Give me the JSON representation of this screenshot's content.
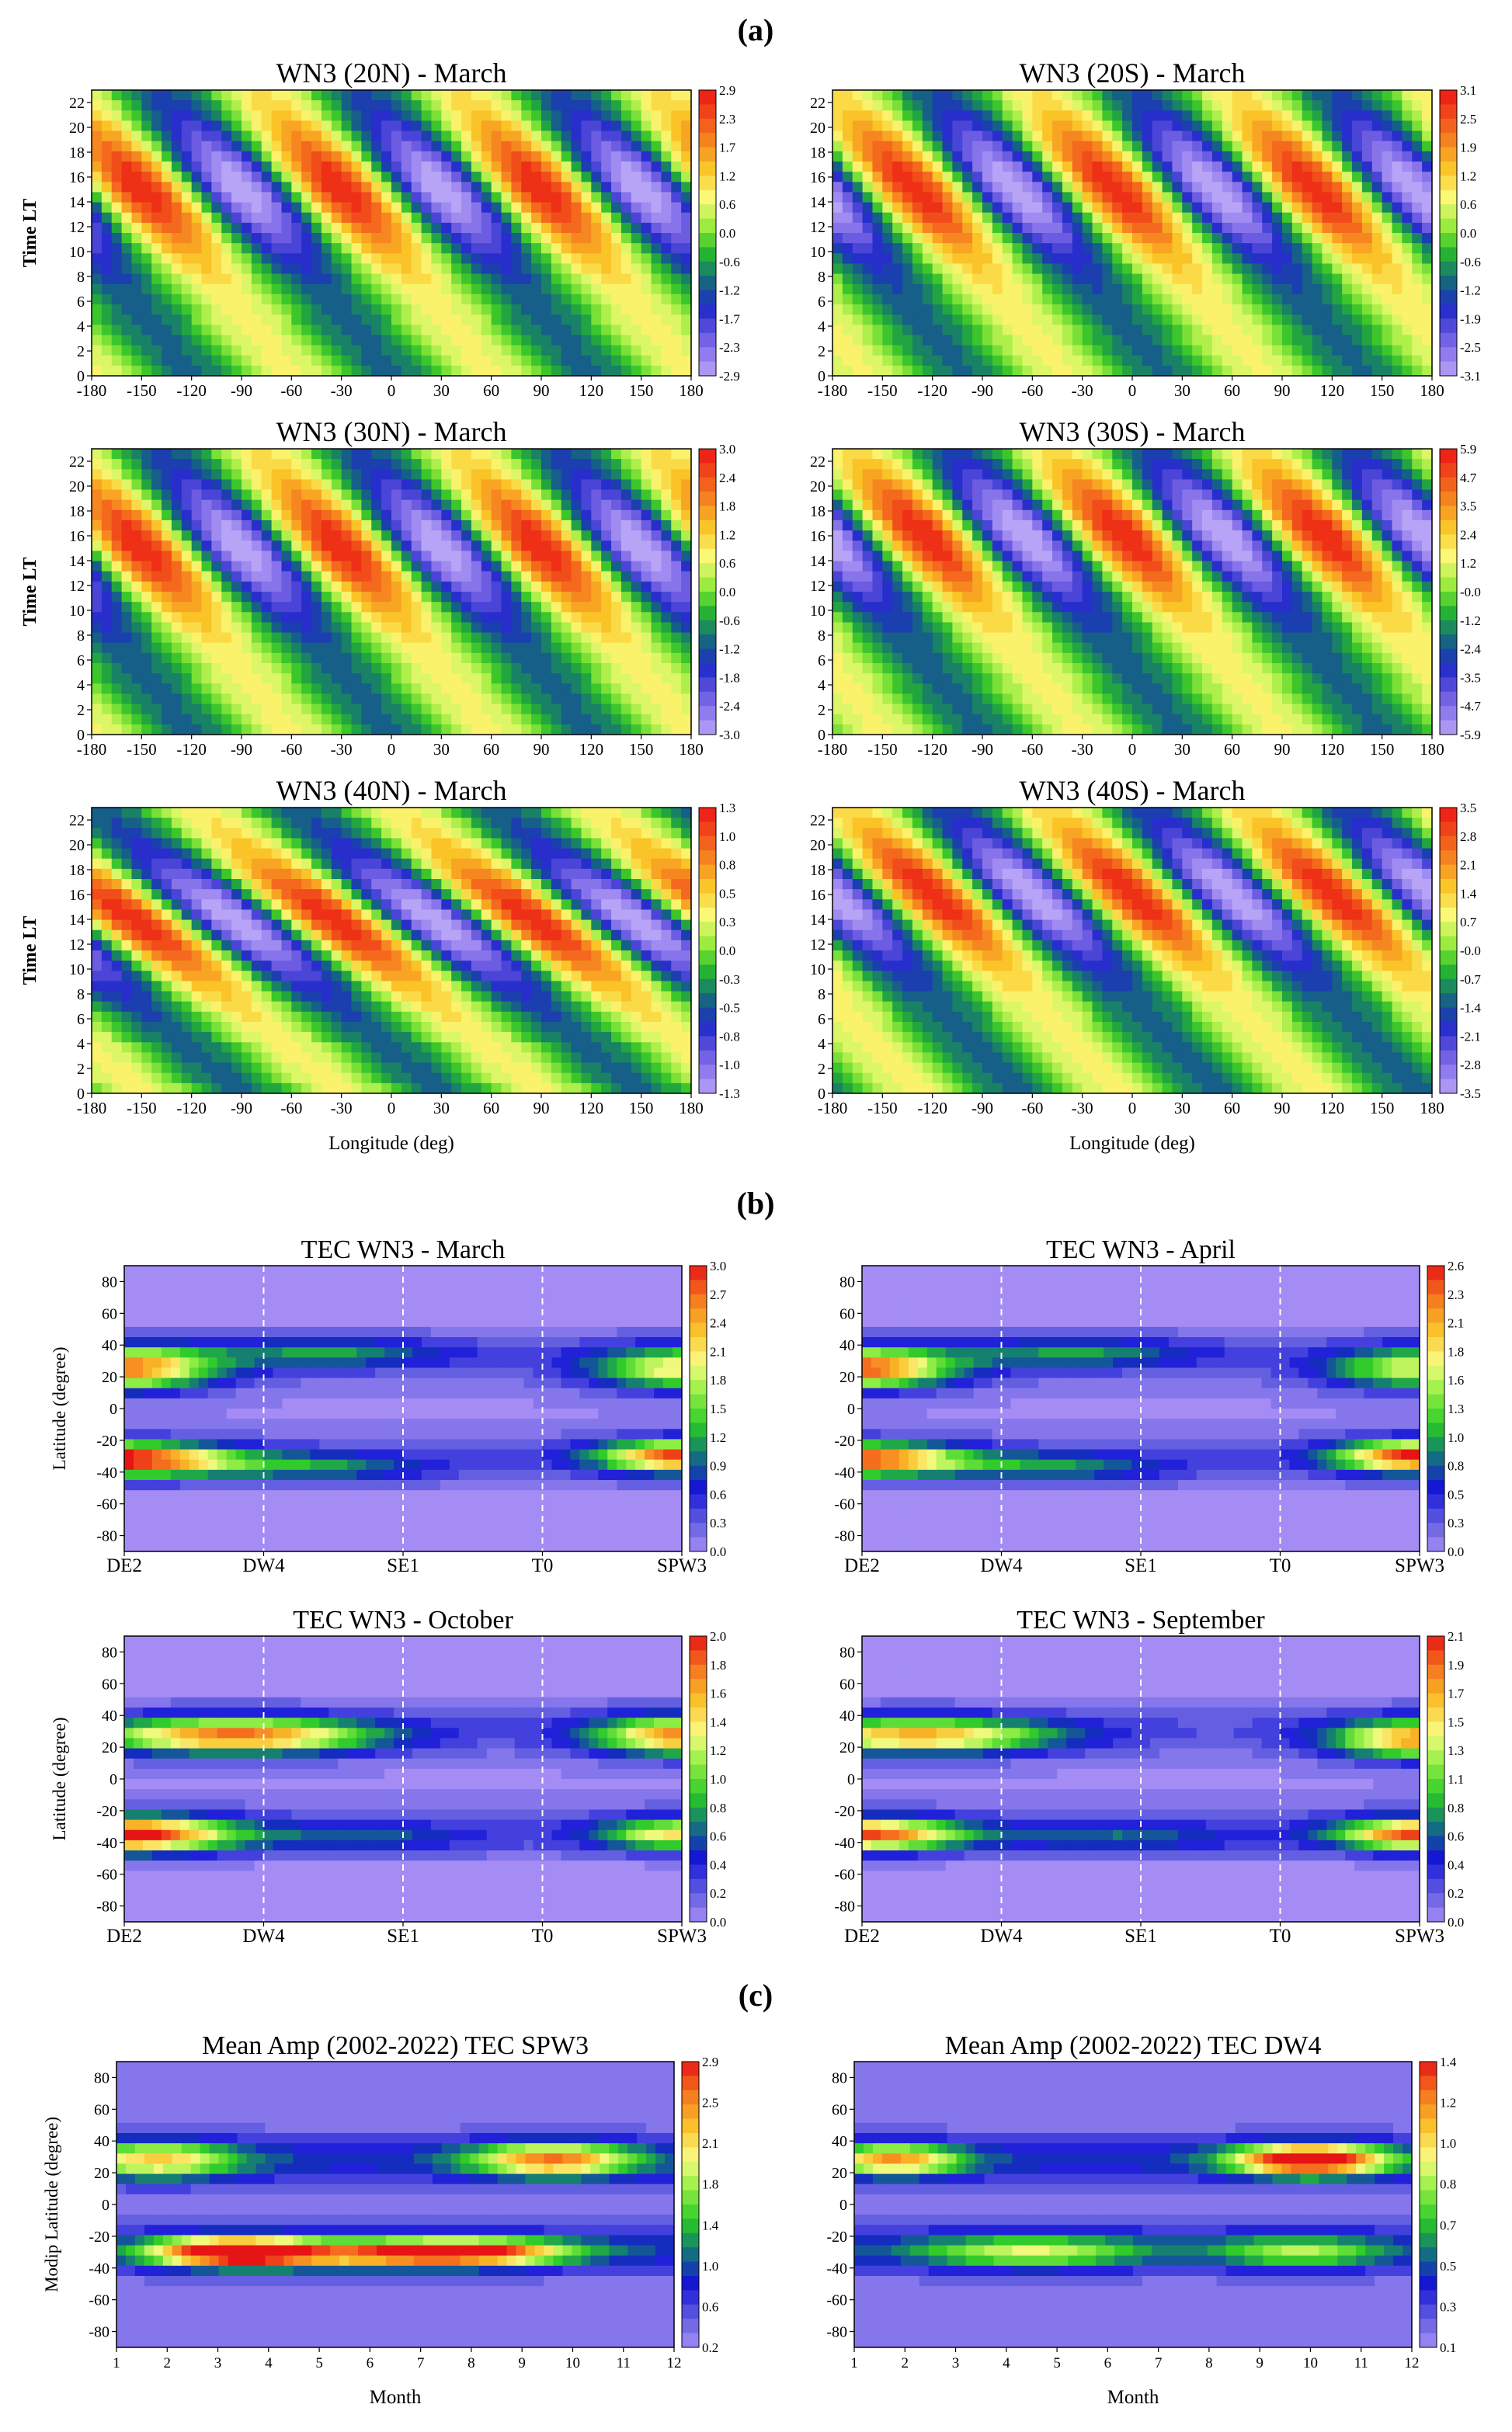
{
  "figure": {
    "section_labels": [
      "(a)",
      "(b)",
      "(c)"
    ]
  },
  "chart_data": [
    {
      "id": "a1",
      "type": "heatmap",
      "group": "a",
      "title": "WN3 (20N) - March",
      "ylabel": "Time LT",
      "xlabel": "",
      "x_ticks": [
        "-180",
        "-150",
        "-120",
        "-90",
        "-60",
        "-30",
        "0",
        "30",
        "60",
        "90",
        "120",
        "150",
        "180"
      ],
      "y_ticks": [
        "0",
        "2",
        "4",
        "6",
        "8",
        "10",
        "12",
        "14",
        "16",
        "18",
        "20",
        "22"
      ],
      "xlim": [
        -180,
        180
      ],
      "ylim": [
        0,
        23
      ],
      "colorbar": [
        "2.9",
        "2.3",
        "1.7",
        "1.2",
        "0.6",
        "0.0",
        "-0.6",
        "-1.2",
        "-1.7",
        "-2.3",
        "-2.9"
      ],
      "field": {
        "kind": "wave",
        "wavenumber": 3,
        "phase_deg": -150,
        "peak_lt": 15,
        "tilt_deg_per_hr": -6,
        "amplitude": 2.9
      }
    },
    {
      "id": "a2",
      "type": "heatmap",
      "group": "a",
      "title": "WN3 (20S) - March",
      "ylabel": "",
      "xlabel": "",
      "x_ticks": [
        "-180",
        "-150",
        "-120",
        "-90",
        "-60",
        "-30",
        "0",
        "30",
        "60",
        "90",
        "120",
        "150",
        "180"
      ],
      "y_ticks": [
        "0",
        "2",
        "4",
        "6",
        "8",
        "10",
        "12",
        "14",
        "16",
        "18",
        "20",
        "22"
      ],
      "xlim": [
        -180,
        180
      ],
      "ylim": [
        0,
        23
      ],
      "colorbar": [
        "3.1",
        "2.5",
        "1.9",
        "1.2",
        "0.6",
        "0.0",
        "-0.6",
        "-1.2",
        "-1.9",
        "-2.5",
        "-3.1"
      ],
      "field": {
        "kind": "wave",
        "wavenumber": 3,
        "phase_deg": -130,
        "peak_lt": 15,
        "tilt_deg_per_hr": -6,
        "amplitude": 3.1
      }
    },
    {
      "id": "a3",
      "type": "heatmap",
      "group": "a",
      "title": "WN3 (30N) - March",
      "ylabel": "Time LT",
      "xlabel": "",
      "x_ticks": [
        "-180",
        "-150",
        "-120",
        "-90",
        "-60",
        "-30",
        "0",
        "30",
        "60",
        "90",
        "120",
        "150",
        "180"
      ],
      "y_ticks": [
        "0",
        "2",
        "4",
        "6",
        "8",
        "10",
        "12",
        "14",
        "16",
        "18",
        "20",
        "22"
      ],
      "xlim": [
        -180,
        180
      ],
      "ylim": [
        0,
        23
      ],
      "colorbar": [
        "3.0",
        "2.4",
        "1.8",
        "1.2",
        "0.6",
        "0.0",
        "-0.6",
        "-1.2",
        "-1.8",
        "-2.4",
        "-3.0"
      ],
      "field": {
        "kind": "wave",
        "wavenumber": 3,
        "phase_deg": -150,
        "peak_lt": 15,
        "tilt_deg_per_hr": -6,
        "amplitude": 3.0
      }
    },
    {
      "id": "a4",
      "type": "heatmap",
      "group": "a",
      "title": "WN3 (30S) - March",
      "ylabel": "",
      "xlabel": "",
      "x_ticks": [
        "-180",
        "-150",
        "-120",
        "-90",
        "-60",
        "-30",
        "0",
        "30",
        "60",
        "90",
        "120",
        "150",
        "180"
      ],
      "y_ticks": [
        "0",
        "2",
        "4",
        "6",
        "8",
        "10",
        "12",
        "14",
        "16",
        "18",
        "20",
        "22"
      ],
      "xlim": [
        -180,
        180
      ],
      "ylim": [
        0,
        23
      ],
      "colorbar": [
        "5.9",
        "4.7",
        "3.5",
        "2.4",
        "1.2",
        "-0.0",
        "-1.2",
        "-2.4",
        "-3.5",
        "-4.7",
        "-5.9"
      ],
      "field": {
        "kind": "wave",
        "wavenumber": 3,
        "phase_deg": -125,
        "peak_lt": 16,
        "tilt_deg_per_hr": -6,
        "amplitude": 5.9
      }
    },
    {
      "id": "a5",
      "type": "heatmap",
      "group": "a",
      "title": "WN3 (40N) - March",
      "ylabel": "Time LT",
      "xlabel": "Longitude (deg)",
      "x_ticks": [
        "-180",
        "-150",
        "-120",
        "-90",
        "-60",
        "-30",
        "0",
        "30",
        "60",
        "90",
        "120",
        "150",
        "180"
      ],
      "y_ticks": [
        "0",
        "2",
        "4",
        "6",
        "8",
        "10",
        "12",
        "14",
        "16",
        "18",
        "20",
        "22"
      ],
      "xlim": [
        -180,
        180
      ],
      "ylim": [
        0,
        23
      ],
      "colorbar": [
        "1.3",
        "1.0",
        "0.8",
        "0.5",
        "0.3",
        "0.0",
        "-0.3",
        "-0.5",
        "-0.8",
        "-1.0",
        "-1.3"
      ],
      "field": {
        "kind": "wave",
        "wavenumber": 3,
        "phase_deg": -155,
        "peak_lt": 14,
        "tilt_deg_per_hr": -9,
        "amplitude": 1.3
      }
    },
    {
      "id": "a6",
      "type": "heatmap",
      "group": "a",
      "title": "WN3 (40S) - March",
      "ylabel": "",
      "xlabel": "Longitude (deg)",
      "x_ticks": [
        "-180",
        "-150",
        "-120",
        "-90",
        "-60",
        "-30",
        "0",
        "30",
        "60",
        "90",
        "120",
        "150",
        "180"
      ],
      "y_ticks": [
        "0",
        "2",
        "4",
        "6",
        "8",
        "10",
        "12",
        "14",
        "16",
        "18",
        "20",
        "22"
      ],
      "xlim": [
        -180,
        180
      ],
      "ylim": [
        0,
        23
      ],
      "colorbar": [
        "3.5",
        "2.8",
        "2.1",
        "1.4",
        "0.7",
        "-0.0",
        "-0.7",
        "-1.4",
        "-2.1",
        "-2.8",
        "-3.5"
      ],
      "field": {
        "kind": "wave",
        "wavenumber": 3,
        "phase_deg": -120,
        "peak_lt": 16,
        "tilt_deg_per_hr": -7,
        "amplitude": 3.5
      }
    },
    {
      "id": "b1",
      "type": "heatmap",
      "group": "b",
      "title": "TEC WN3 - March",
      "ylabel": "Latitude (degree)",
      "xlabel": "",
      "x_ticks": [
        "DE2",
        "DW4",
        "SE1",
        "T0",
        "SPW3"
      ],
      "y_ticks": [
        "-80",
        "-60",
        "-40",
        "-20",
        "0",
        "20",
        "40",
        "60",
        "80"
      ],
      "ylim": [
        -90,
        90
      ],
      "dashed_at": [
        "DW4",
        "SE1",
        "T0"
      ],
      "colorbar": [
        "3.0",
        "2.7",
        "2.4",
        "2.1",
        "1.8",
        "1.5",
        "1.2",
        "0.9",
        "0.6",
        "0.3",
        "0.0"
      ],
      "field": {
        "kind": "tidal",
        "blobs": [
          {
            "x": 0.0,
            "lat": 25,
            "amp": 0.8,
            "w": 0.16,
            "h": 13
          },
          {
            "x": 0.0,
            "lat": -32,
            "amp": 0.95,
            "w": 0.19,
            "h": 10
          },
          {
            "x": 0.36,
            "lat": 35,
            "amp": 0.28,
            "w": 0.22,
            "h": 9
          },
          {
            "x": 0.34,
            "lat": -37,
            "amp": 0.28,
            "w": 0.2,
            "h": 9
          },
          {
            "x": 1.0,
            "lat": 25,
            "amp": 0.6,
            "w": 0.16,
            "h": 13
          },
          {
            "x": 1.0,
            "lat": -30,
            "amp": 0.85,
            "w": 0.15,
            "h": 10
          }
        ]
      }
    },
    {
      "id": "b2",
      "type": "heatmap",
      "group": "b",
      "title": "TEC WN3 - April",
      "ylabel": "",
      "xlabel": "",
      "x_ticks": [
        "DE2",
        "DW4",
        "SE1",
        "T0",
        "SPW3"
      ],
      "y_ticks": [
        "-80",
        "-60",
        "-40",
        "-20",
        "0",
        "20",
        "40",
        "60",
        "80"
      ],
      "ylim": [
        -90,
        90
      ],
      "dashed_at": [
        "DW4",
        "SE1",
        "T0"
      ],
      "colorbar": [
        "2.6",
        "2.3",
        "2.1",
        "1.8",
        "1.6",
        "1.3",
        "1.0",
        "0.8",
        "0.5",
        "0.3",
        "0.0"
      ],
      "field": {
        "kind": "tidal",
        "blobs": [
          {
            "x": 0.0,
            "lat": 25,
            "amp": 0.85,
            "w": 0.16,
            "h": 12
          },
          {
            "x": 0.0,
            "lat": -32,
            "amp": 0.85,
            "w": 0.18,
            "h": 10
          },
          {
            "x": 0.38,
            "lat": 35,
            "amp": 0.28,
            "w": 0.22,
            "h": 9
          },
          {
            "x": 0.34,
            "lat": -37,
            "amp": 0.28,
            "w": 0.2,
            "h": 9
          },
          {
            "x": 1.0,
            "lat": 25,
            "amp": 0.55,
            "w": 0.16,
            "h": 13
          },
          {
            "x": 1.0,
            "lat": -30,
            "amp": 0.9,
            "w": 0.15,
            "h": 10
          }
        ]
      }
    },
    {
      "id": "b3",
      "type": "heatmap",
      "group": "b",
      "title": "TEC WN3 - October",
      "ylabel": "Latitude (degree)",
      "xlabel": "",
      "x_ticks": [
        "DE2",
        "DW4",
        "SE1",
        "T0",
        "SPW3"
      ],
      "y_ticks": [
        "-80",
        "-60",
        "-40",
        "-20",
        "0",
        "20",
        "40",
        "60",
        "80"
      ],
      "ylim": [
        -90,
        90
      ],
      "dashed_at": [
        "DW4",
        "SE1",
        "T0"
      ],
      "colorbar": [
        "2.0",
        "1.8",
        "1.6",
        "1.4",
        "1.2",
        "1.0",
        "0.8",
        "0.6",
        "0.4",
        "0.2",
        "0.0"
      ],
      "field": {
        "kind": "tidal",
        "blobs": [
          {
            "x": 0.2,
            "lat": 27,
            "amp": 0.8,
            "w": 0.25,
            "h": 11
          },
          {
            "x": 0.0,
            "lat": -35,
            "amp": 0.95,
            "w": 0.19,
            "h": 11
          },
          {
            "x": 0.42,
            "lat": -37,
            "amp": 0.2,
            "w": 0.22,
            "h": 9
          },
          {
            "x": 1.0,
            "lat": 27,
            "amp": 0.75,
            "w": 0.16,
            "h": 12
          },
          {
            "x": 1.0,
            "lat": -35,
            "amp": 0.6,
            "w": 0.15,
            "h": 10
          }
        ]
      }
    },
    {
      "id": "b4",
      "type": "heatmap",
      "group": "b",
      "title": "TEC WN3 - September",
      "ylabel": "",
      "xlabel": "",
      "x_ticks": [
        "DE2",
        "DW4",
        "SE1",
        "T0",
        "SPW3"
      ],
      "y_ticks": [
        "-80",
        "-60",
        "-40",
        "-20",
        "0",
        "20",
        "40",
        "60",
        "80"
      ],
      "ylim": [
        -90,
        90
      ],
      "dashed_at": [
        "DW4",
        "SE1",
        "T0"
      ],
      "colorbar": [
        "2.1",
        "1.9",
        "1.7",
        "1.5",
        "1.3",
        "1.1",
        "0.8",
        "0.6",
        "0.4",
        "0.2",
        "0.0"
      ],
      "field": {
        "kind": "tidal",
        "blobs": [
          {
            "x": 0.1,
            "lat": 27,
            "amp": 0.7,
            "w": 0.25,
            "h": 11
          },
          {
            "x": 0.0,
            "lat": -35,
            "amp": 0.85,
            "w": 0.18,
            "h": 10
          },
          {
            "x": 0.46,
            "lat": -37,
            "amp": 0.22,
            "w": 0.22,
            "h": 9
          },
          {
            "x": 1.0,
            "lat": 25,
            "amp": 0.75,
            "w": 0.16,
            "h": 12
          },
          {
            "x": 1.0,
            "lat": -35,
            "amp": 0.85,
            "w": 0.15,
            "h": 10
          }
        ]
      }
    },
    {
      "id": "c1",
      "type": "heatmap",
      "group": "c",
      "title": "Mean Amp (2002-2022) TEC SPW3",
      "ylabel": "Modip Latitude (degree)",
      "xlabel": "Month",
      "x_ticks": [
        "1",
        "2",
        "3",
        "4",
        "5",
        "6",
        "7",
        "8",
        "9",
        "10",
        "11",
        "12"
      ],
      "y_ticks": [
        "-80",
        "-60",
        "-40",
        "-20",
        "0",
        "20",
        "40",
        "60",
        "80"
      ],
      "xlim": [
        1,
        12
      ],
      "ylim": [
        -90,
        90
      ],
      "colorbar": [
        "2.9",
        "2.5",
        "2.1",
        "1.8",
        "1.4",
        "1.0",
        "0.6",
        "0.2"
      ],
      "field": {
        "kind": "monthly",
        "blobs": [
          {
            "m": 3.3,
            "lat": -30,
            "amp": 0.95,
            "w": 1.6,
            "h": 9
          },
          {
            "m": 8.0,
            "lat": -30,
            "amp": 0.7,
            "w": 2.0,
            "h": 8
          },
          {
            "m": 1.8,
            "lat": 28,
            "amp": 0.5,
            "w": 1.6,
            "h": 12
          },
          {
            "m": 9.6,
            "lat": 28,
            "amp": 0.65,
            "w": 1.6,
            "h": 11
          },
          {
            "m": 6.0,
            "lat": -32,
            "amp": 0.45,
            "w": 2.5,
            "h": 9
          }
        ]
      }
    },
    {
      "id": "c2",
      "type": "heatmap",
      "group": "c",
      "title": "Mean Amp (2002-2022) TEC DW4",
      "ylabel": "",
      "xlabel": "Month",
      "x_ticks": [
        "1",
        "2",
        "3",
        "4",
        "5",
        "6",
        "7",
        "8",
        "9",
        "10",
        "11",
        "12"
      ],
      "y_ticks": [
        "-80",
        "-60",
        "-40",
        "-20",
        "0",
        "20",
        "40",
        "60",
        "80"
      ],
      "xlim": [
        1,
        12
      ],
      "ylim": [
        -90,
        90
      ],
      "colorbar": [
        "1.4",
        "1.2",
        "1.0",
        "0.8",
        "0.7",
        "0.5",
        "0.3",
        "0.1"
      ],
      "field": {
        "kind": "monthly",
        "blobs": [
          {
            "m": 10.0,
            "lat": 28,
            "amp": 0.95,
            "w": 1.5,
            "h": 10
          },
          {
            "m": 1.8,
            "lat": 28,
            "amp": 0.6,
            "w": 1.3,
            "h": 10
          },
          {
            "m": 4.5,
            "lat": -30,
            "amp": 0.4,
            "w": 2.2,
            "h": 10
          },
          {
            "m": 9.8,
            "lat": -30,
            "amp": 0.35,
            "w": 1.6,
            "h": 10
          }
        ]
      }
    }
  ]
}
